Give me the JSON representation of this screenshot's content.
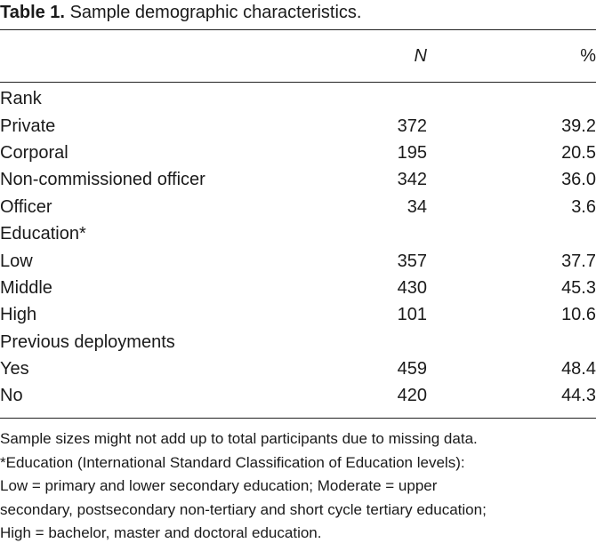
{
  "caption": {
    "label": "Table 1.",
    "text": "Sample demographic characteristics."
  },
  "table": {
    "headers": {
      "label": "",
      "n": "N",
      "pct": "%"
    },
    "rows": [
      {
        "label": "Rank",
        "n": "",
        "pct": "",
        "type": "group"
      },
      {
        "label": "Private",
        "n": "372",
        "pct": "39.2",
        "type": "item"
      },
      {
        "label": "Corporal",
        "n": "195",
        "pct": "20.5",
        "type": "item"
      },
      {
        "label": "Non-commissioned officer",
        "n": "342",
        "pct": "36.0",
        "type": "item"
      },
      {
        "label": "Officer",
        "n": "34",
        "pct": "3.6",
        "type": "item"
      },
      {
        "label": "Education*",
        "n": "",
        "pct": "",
        "type": "group"
      },
      {
        "label": "Low",
        "n": "357",
        "pct": "37.7",
        "type": "item"
      },
      {
        "label": "Middle",
        "n": "430",
        "pct": "45.3",
        "type": "item"
      },
      {
        "label": "High",
        "n": "101",
        "pct": "10.6",
        "type": "item"
      },
      {
        "label": "Previous deployments",
        "n": "",
        "pct": "",
        "type": "group"
      },
      {
        "label": "Yes",
        "n": "459",
        "pct": "48.4",
        "type": "item"
      },
      {
        "label": "No",
        "n": "420",
        "pct": "44.3",
        "type": "item"
      }
    ]
  },
  "notes": [
    "Sample sizes might not add up to total participants due to missing data.",
    "*Education (International Standard Classification of Education levels):",
    "Low = primary and lower secondary education; Moderate = upper",
    "secondary, postsecondary non-tertiary and short cycle tertiary education;",
    "High = bachelor, master and doctoral education."
  ]
}
